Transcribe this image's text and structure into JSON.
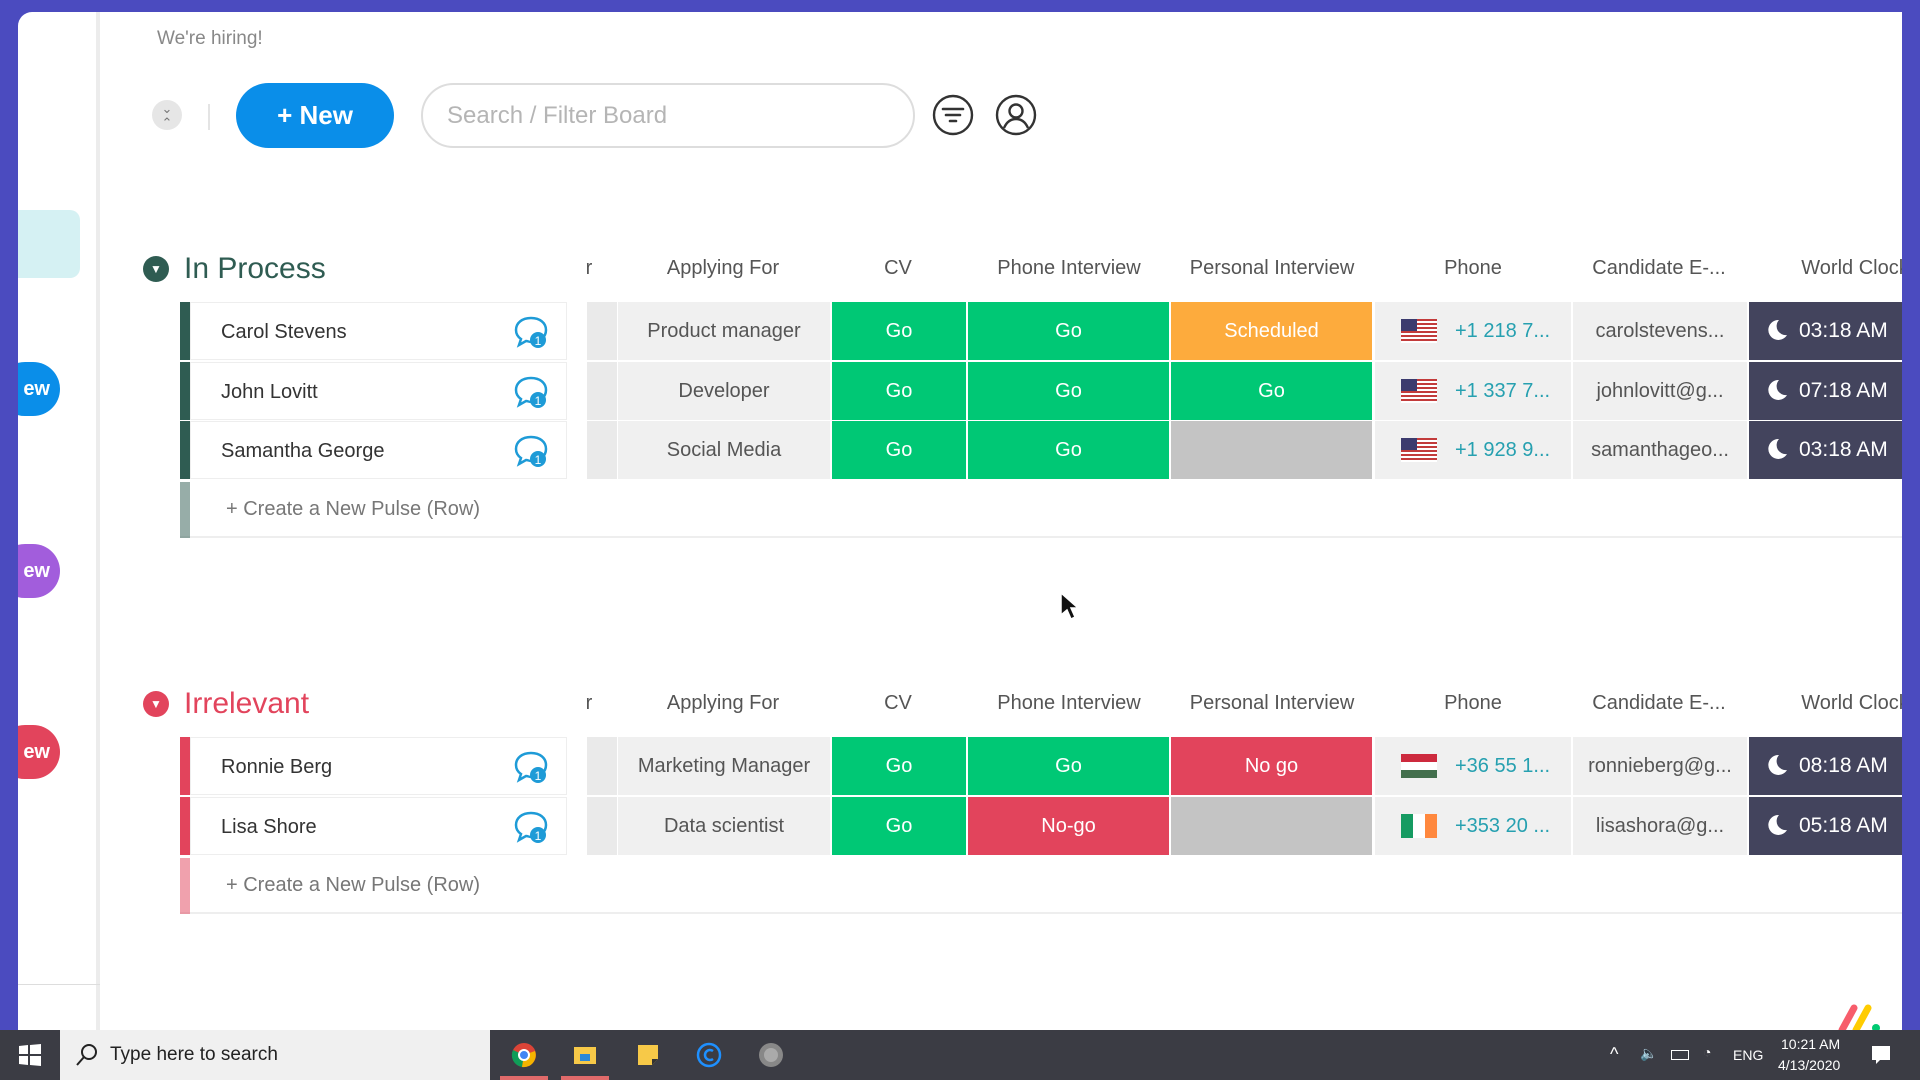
{
  "header": {
    "hiring": "We're hiring!",
    "new_label": "+ New",
    "search_placeholder": "Search / Filter Board"
  },
  "sidebar": {
    "pill1": "ew",
    "pill2": "ew",
    "pill3": "ew"
  },
  "columns": {
    "c0": "r",
    "c1": "Applying For",
    "c2": "CV",
    "c3": "Phone Interview",
    "c4": "Personal Interview",
    "c5": "Phone",
    "c6": "Candidate E-...",
    "c7": "World Clock"
  },
  "colors": {
    "go": "#00c875",
    "scheduled": "#fdab3d",
    "nogo": "#e2445c",
    "empty": "#c4c4c4",
    "in_process": "#2f5c52",
    "irrelevant": "#e2445c"
  },
  "groups": [
    {
      "title": "In Process",
      "create_label": "+ Create a New Pulse (Row)",
      "rows": [
        {
          "name": "Carol Stevens",
          "updates": "1",
          "applying": "Product manager",
          "cv": "Go",
          "phone_interview": "Go",
          "personal_interview": "Scheduled",
          "flag": "us",
          "phone": "+1 218 7...",
          "email": "carolstevens...",
          "clock": "03:18 AM"
        },
        {
          "name": "John Lovitt",
          "updates": "1",
          "applying": "Developer",
          "cv": "Go",
          "phone_interview": "Go",
          "personal_interview": "Go",
          "flag": "us",
          "phone": "+1 337 7...",
          "email": "johnlovitt@g...",
          "clock": "07:18 AM"
        },
        {
          "name": "Samantha George",
          "updates": "1",
          "applying": "Social Media",
          "cv": "Go",
          "phone_interview": "Go",
          "personal_interview": "",
          "flag": "us",
          "phone": "+1 928 9...",
          "email": "samanthageo...",
          "clock": "03:18 AM"
        }
      ]
    },
    {
      "title": "Irrelevant",
      "create_label": "+ Create a New Pulse (Row)",
      "rows": [
        {
          "name": "Ronnie Berg",
          "updates": "1",
          "applying": "Marketing Manager",
          "cv": "Go",
          "phone_interview": "Go",
          "personal_interview": "No go",
          "flag": "hu",
          "phone": "+36 55 1...",
          "email": "ronnieberg@g...",
          "clock": "08:18 AM"
        },
        {
          "name": "Lisa Shore",
          "updates": "1",
          "applying": "Data scientist",
          "cv": "Go",
          "phone_interview": "No-go",
          "personal_interview": "",
          "flag": "ie",
          "phone": "+353 20 ...",
          "email": "lisashora@g...",
          "clock": "05:18 AM"
        }
      ]
    }
  ],
  "taskbar": {
    "search": "Type here to search",
    "lang": "ENG",
    "time": "10:21 AM",
    "date": "4/13/2020"
  }
}
